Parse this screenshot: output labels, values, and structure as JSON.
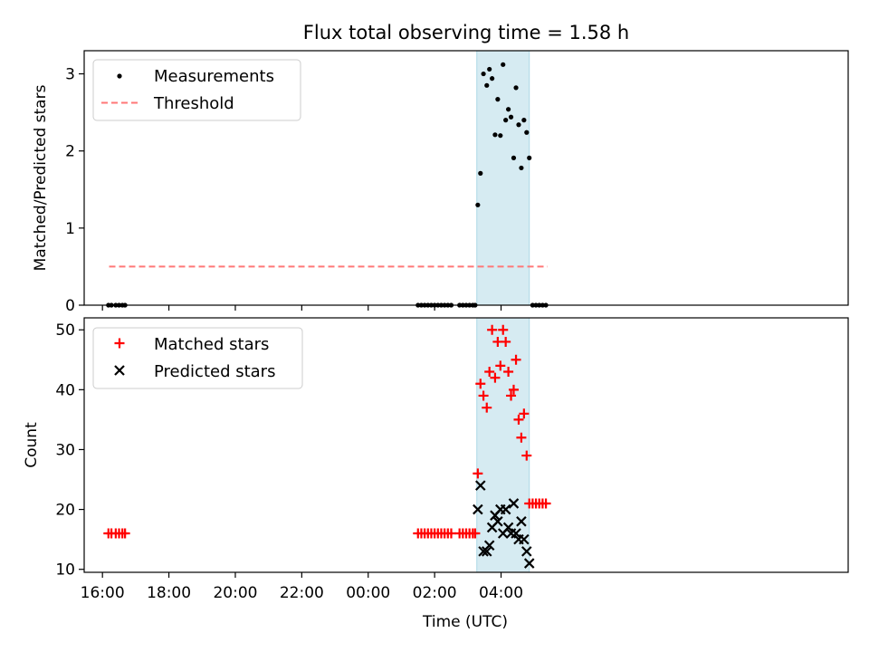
{
  "figure": {
    "title": "Flux total observing time = 1.58 h"
  },
  "chart_data": [
    {
      "type": "scatter",
      "ylabel": "Matched/Predicted stars",
      "ylim": [
        0,
        3.3
      ],
      "xlim_hours": [
        15.45,
        38.45
      ],
      "yticks": [
        0,
        1,
        2,
        3
      ],
      "ytick_labels": [
        "0",
        "1",
        "2",
        "3"
      ],
      "highlight_span": {
        "start": 27.27,
        "end": 28.85,
        "color": "#add8e6"
      },
      "threshold": {
        "name": "Threshold",
        "value": 0.5,
        "x_start": 16.2,
        "x_end": 29.4,
        "color": "#ff7777"
      },
      "legend": {
        "placement": "upper-left",
        "entries": [
          "Measurements",
          "Threshold"
        ]
      },
      "series": [
        {
          "name": "Measurements",
          "marker": "dot",
          "color": "#000000",
          "points": [
            [
              16.18,
              0
            ],
            [
              16.27,
              0
            ],
            [
              16.4,
              0
            ],
            [
              16.5,
              0
            ],
            [
              16.6,
              0
            ],
            [
              16.68,
              0
            ],
            [
              25.5,
              0
            ],
            [
              25.6,
              0
            ],
            [
              25.7,
              0
            ],
            [
              25.8,
              0
            ],
            [
              25.9,
              0
            ],
            [
              26.0,
              0
            ],
            [
              26.1,
              0
            ],
            [
              26.2,
              0
            ],
            [
              26.3,
              0
            ],
            [
              26.4,
              0
            ],
            [
              26.5,
              0
            ],
            [
              26.75,
              0
            ],
            [
              26.85,
              0
            ],
            [
              26.95,
              0
            ],
            [
              27.05,
              0
            ],
            [
              27.15,
              0
            ],
            [
              27.22,
              0
            ],
            [
              27.3,
              1.3
            ],
            [
              27.38,
              1.71
            ],
            [
              27.47,
              3.0
            ],
            [
              27.57,
              2.85
            ],
            [
              27.65,
              3.06
            ],
            [
              27.73,
              2.94
            ],
            [
              27.82,
              2.21
            ],
            [
              27.9,
              2.67
            ],
            [
              27.98,
              2.2
            ],
            [
              28.06,
              3.12
            ],
            [
              28.14,
              2.4
            ],
            [
              28.22,
              2.54
            ],
            [
              28.3,
              2.44
            ],
            [
              28.38,
              1.91
            ],
            [
              28.45,
              2.82
            ],
            [
              28.53,
              2.34
            ],
            [
              28.61,
              1.78
            ],
            [
              28.69,
              2.4
            ],
            [
              28.77,
              2.24
            ],
            [
              28.85,
              1.91
            ],
            [
              28.95,
              0
            ],
            [
              29.05,
              0
            ],
            [
              29.15,
              0
            ],
            [
              29.25,
              0
            ],
            [
              29.35,
              0
            ]
          ]
        }
      ]
    },
    {
      "type": "scatter",
      "xlabel": "Time (UTC)",
      "ylabel": "Count",
      "ylim": [
        9.5,
        52
      ],
      "xlim_hours": [
        15.45,
        38.45
      ],
      "yticks": [
        10,
        20,
        30,
        40,
        50
      ],
      "ytick_labels": [
        "10",
        "20",
        "30",
        "40",
        "50"
      ],
      "xticks_hours": [
        16,
        18,
        20,
        22,
        24,
        26,
        28
      ],
      "xtick_labels": [
        "16:00",
        "18:00",
        "20:00",
        "22:00",
        "00:00",
        "02:00",
        "04:00"
      ],
      "highlight_span": {
        "start": 27.27,
        "end": 28.85,
        "color": "#add8e6"
      },
      "legend": {
        "placement": "upper-left",
        "entries": [
          "Matched stars",
          "Predicted stars"
        ]
      },
      "series": [
        {
          "name": "Matched stars",
          "marker": "plus",
          "color": "#ff0000",
          "points": [
            [
              16.18,
              16
            ],
            [
              16.27,
              16
            ],
            [
              16.4,
              16
            ],
            [
              16.5,
              16
            ],
            [
              16.6,
              16
            ],
            [
              16.68,
              16
            ],
            [
              25.5,
              16
            ],
            [
              25.6,
              16
            ],
            [
              25.7,
              16
            ],
            [
              25.8,
              16
            ],
            [
              25.9,
              16
            ],
            [
              26.0,
              16
            ],
            [
              26.1,
              16
            ],
            [
              26.2,
              16
            ],
            [
              26.3,
              16
            ],
            [
              26.4,
              16
            ],
            [
              26.5,
              16
            ],
            [
              26.75,
              16
            ],
            [
              26.85,
              16
            ],
            [
              26.95,
              16
            ],
            [
              27.05,
              16
            ],
            [
              27.15,
              16
            ],
            [
              27.22,
              16
            ],
            [
              27.3,
              26
            ],
            [
              27.38,
              41
            ],
            [
              27.47,
              39
            ],
            [
              27.57,
              37
            ],
            [
              27.65,
              43
            ],
            [
              27.73,
              50
            ],
            [
              27.82,
              42
            ],
            [
              27.9,
              48
            ],
            [
              27.98,
              44
            ],
            [
              28.06,
              50
            ],
            [
              28.14,
              48
            ],
            [
              28.22,
              43
            ],
            [
              28.3,
              39
            ],
            [
              28.38,
              40
            ],
            [
              28.45,
              45
            ],
            [
              28.53,
              35
            ],
            [
              28.61,
              32
            ],
            [
              28.69,
              36
            ],
            [
              28.77,
              29
            ],
            [
              28.85,
              21
            ],
            [
              28.95,
              21
            ],
            [
              29.05,
              21
            ],
            [
              29.15,
              21
            ],
            [
              29.25,
              21
            ],
            [
              29.35,
              21
            ]
          ]
        },
        {
          "name": "Predicted stars",
          "marker": "x",
          "color": "#000000",
          "points": [
            [
              27.3,
              20
            ],
            [
              27.38,
              24
            ],
            [
              27.47,
              13
            ],
            [
              27.57,
              13
            ],
            [
              27.65,
              14
            ],
            [
              27.73,
              17
            ],
            [
              27.82,
              19
            ],
            [
              27.9,
              18
            ],
            [
              27.98,
              20
            ],
            [
              28.06,
              16
            ],
            [
              28.14,
              20
            ],
            [
              28.22,
              17
            ],
            [
              28.3,
              16
            ],
            [
              28.38,
              21
            ],
            [
              28.45,
              16
            ],
            [
              28.53,
              15
            ],
            [
              28.61,
              18
            ],
            [
              28.69,
              15
            ],
            [
              28.77,
              13
            ],
            [
              28.85,
              11
            ]
          ]
        }
      ]
    }
  ]
}
